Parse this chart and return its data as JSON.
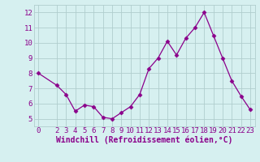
{
  "x": [
    0,
    2,
    3,
    4,
    5,
    6,
    7,
    8,
    9,
    10,
    11,
    12,
    13,
    14,
    15,
    16,
    17,
    18,
    19,
    20,
    21,
    22,
    23
  ],
  "y": [
    8.0,
    7.2,
    6.6,
    5.5,
    5.9,
    5.8,
    5.1,
    5.0,
    5.4,
    5.8,
    6.6,
    8.3,
    9.0,
    10.1,
    9.2,
    10.3,
    11.0,
    12.0,
    10.5,
    9.0,
    7.5,
    6.5,
    5.6
  ],
  "line_color": "#8b008b",
  "marker": "D",
  "marker_size": 2.5,
  "background_color": "#d6f0f0",
  "grid_color": "#b0cece",
  "xlabel": "Windchill (Refroidissement éolien,°C)",
  "xlabel_color": "#8b008b",
  "xlabel_fontsize": 7,
  "tick_fontsize": 6.5,
  "tick_color": "#8b008b",
  "ylim": [
    4.5,
    12.5
  ],
  "yticks": [
    5,
    6,
    7,
    8,
    9,
    10,
    11,
    12
  ],
  "xlim": [
    -0.5,
    23.5
  ],
  "xticks": [
    0,
    2,
    3,
    4,
    5,
    6,
    7,
    8,
    9,
    10,
    11,
    12,
    13,
    14,
    15,
    16,
    17,
    18,
    19,
    20,
    21,
    22,
    23
  ]
}
